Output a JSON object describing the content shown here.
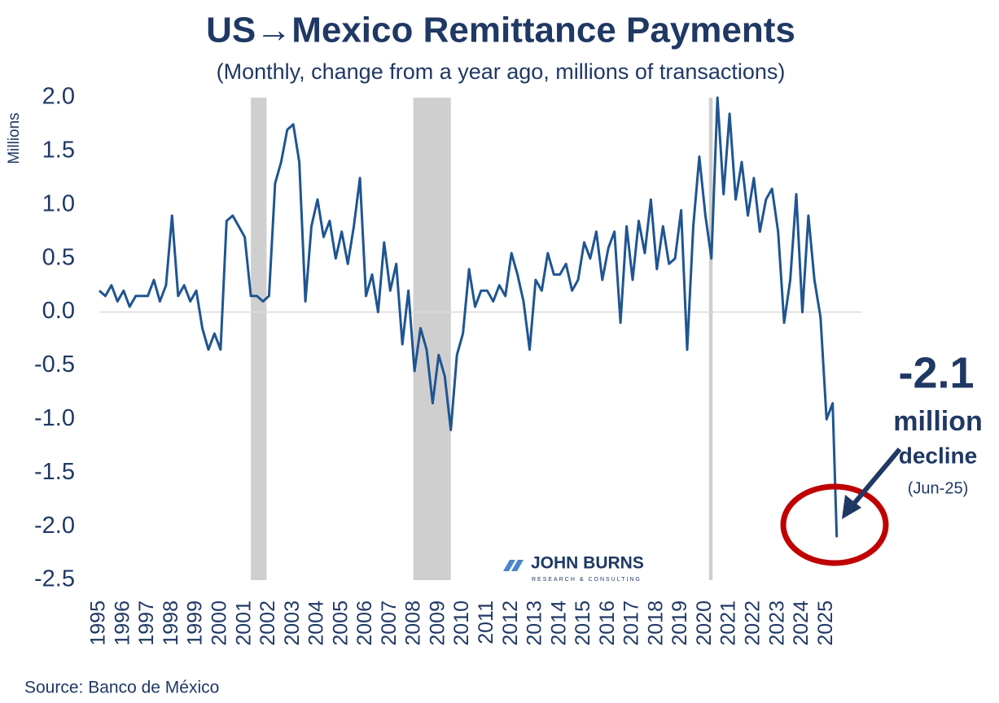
{
  "chart_data": {
    "type": "line",
    "title": "US→Mexico Remittance Payments",
    "subtitle": "(Monthly, change from a year ago, millions of transactions)",
    "y_label": "Millions",
    "source": "Source: Banco de México",
    "logo": {
      "name": "JOHN BURNS",
      "tagline": "RESEARCH & CONSULTING"
    },
    "annotation": {
      "value": "-2.1",
      "line1": "million",
      "line2": "decline",
      "date": "(Jun-25)"
    },
    "ylim": [
      -2.5,
      2.0
    ],
    "yticks": [
      {
        "value": 2.0,
        "label": "2.0"
      },
      1.5,
      {
        "value": 1.0,
        "label": "1.0"
      },
      0.5,
      {
        "value": 0.0,
        "label": "0.0"
      },
      -0.5,
      {
        "value": -1.0,
        "label": "-1.0"
      },
      -1.5,
      {
        "value": -2.0,
        "label": "-2.0"
      },
      {
        "value": -2.5,
        "label": "-2.5"
      }
    ],
    "xlim": [
      1995,
      2026
    ],
    "xticks": [
      1995,
      1996,
      1997,
      1998,
      1999,
      2000,
      2001,
      2002,
      2003,
      2004,
      2005,
      2006,
      2007,
      2008,
      2009,
      2010,
      2011,
      2012,
      2013,
      2014,
      2015,
      2016,
      2017,
      2018,
      2019,
      2020,
      2021,
      2022,
      2023,
      2024,
      2025
    ],
    "zero_line": true,
    "shaded_periods": [
      [
        2001.25,
        2001.9
      ],
      [
        2007.95,
        2009.5
      ],
      [
        2020.15,
        2020.3
      ]
    ],
    "shade_color": "#d0cfd0",
    "x": [
      1995,
      1995.25,
      1995.5,
      1995.75,
      1996,
      1996.25,
      1996.5,
      1996.75,
      1997,
      1997.25,
      1997.5,
      1997.75,
      1998,
      1998.25,
      1998.5,
      1998.75,
      1999,
      1999.25,
      1999.5,
      1999.75,
      2000,
      2000.25,
      2000.5,
      2000.75,
      2001,
      2001.25,
      2001.5,
      2001.75,
      2002,
      2002.25,
      2002.5,
      2002.75,
      2003,
      2003.25,
      2003.5,
      2003.75,
      2004,
      2004.25,
      2004.5,
      2004.75,
      2005,
      2005.25,
      2005.5,
      2005.75,
      2006,
      2006.25,
      2006.5,
      2006.75,
      2007,
      2007.25,
      2007.5,
      2007.75,
      2008,
      2008.25,
      2008.5,
      2008.75,
      2009,
      2009.25,
      2009.5,
      2009.75,
      2010,
      2010.25,
      2010.5,
      2010.75,
      2011,
      2011.25,
      2011.5,
      2011.75,
      2012,
      2012.25,
      2012.5,
      2012.75,
      2013,
      2013.25,
      2013.5,
      2013.75,
      2014,
      2014.25,
      2014.5,
      2014.75,
      2015,
      2015.25,
      2015.5,
      2015.75,
      2016,
      2016.25,
      2016.5,
      2016.75,
      2017,
      2017.25,
      2017.5,
      2017.75,
      2018,
      2018.25,
      2018.5,
      2018.75,
      2019,
      2019.25,
      2019.5,
      2019.75,
      2020,
      2020.25,
      2020.5,
      2020.75,
      2021,
      2021.25,
      2021.5,
      2021.75,
      2022,
      2022.25,
      2022.5,
      2022.75,
      2023,
      2023.25,
      2023.5,
      2023.75,
      2024,
      2024.25,
      2024.5,
      2024.75,
      2025,
      2025.25,
      2025.42
    ],
    "series": [
      {
        "color": "#1f5591",
        "values": [
          0.2,
          0.15,
          0.25,
          0.1,
          0.2,
          0.05,
          0.15,
          0.15,
          0.15,
          0.3,
          0.1,
          0.25,
          0.9,
          0.15,
          0.25,
          0.1,
          0.2,
          -0.15,
          -0.35,
          -0.2,
          -0.35,
          0.85,
          0.9,
          0.8,
          0.7,
          0.15,
          0.15,
          0.1,
          0.15,
          1.2,
          1.4,
          1.7,
          1.75,
          1.4,
          0.1,
          0.8,
          1.05,
          0.7,
          0.85,
          0.5,
          0.75,
          0.45,
          0.8,
          1.25,
          0.15,
          0.35,
          0,
          0.65,
          0.2,
          0.45,
          -0.3,
          0.2,
          -0.55,
          -0.15,
          -0.35,
          -0.85,
          -0.4,
          -0.6,
          -1.1,
          -0.4,
          -0.2,
          0.4,
          0.05,
          0.2,
          0.2,
          0.1,
          0.25,
          0.15,
          0.55,
          0.35,
          0.1,
          -0.35,
          0.3,
          0.2,
          0.55,
          0.35,
          0.35,
          0.45,
          0.2,
          0.3,
          0.65,
          0.5,
          0.75,
          0.3,
          0.6,
          0.75,
          -0.1,
          0.8,
          0.3,
          0.85,
          0.55,
          1.05,
          0.4,
          0.8,
          0.45,
          0.5,
          0.95,
          -0.35,
          0.8,
          1.45,
          0.9,
          0.5,
          2.0,
          1.1,
          1.85,
          1.05,
          1.4,
          0.9,
          1.25,
          0.75,
          1.05,
          1.15,
          0.75,
          -0.1,
          0.3,
          1.1,
          0,
          0.9,
          0.3,
          -0.05,
          -1.0,
          -0.85,
          -2.1
        ]
      }
    ]
  }
}
